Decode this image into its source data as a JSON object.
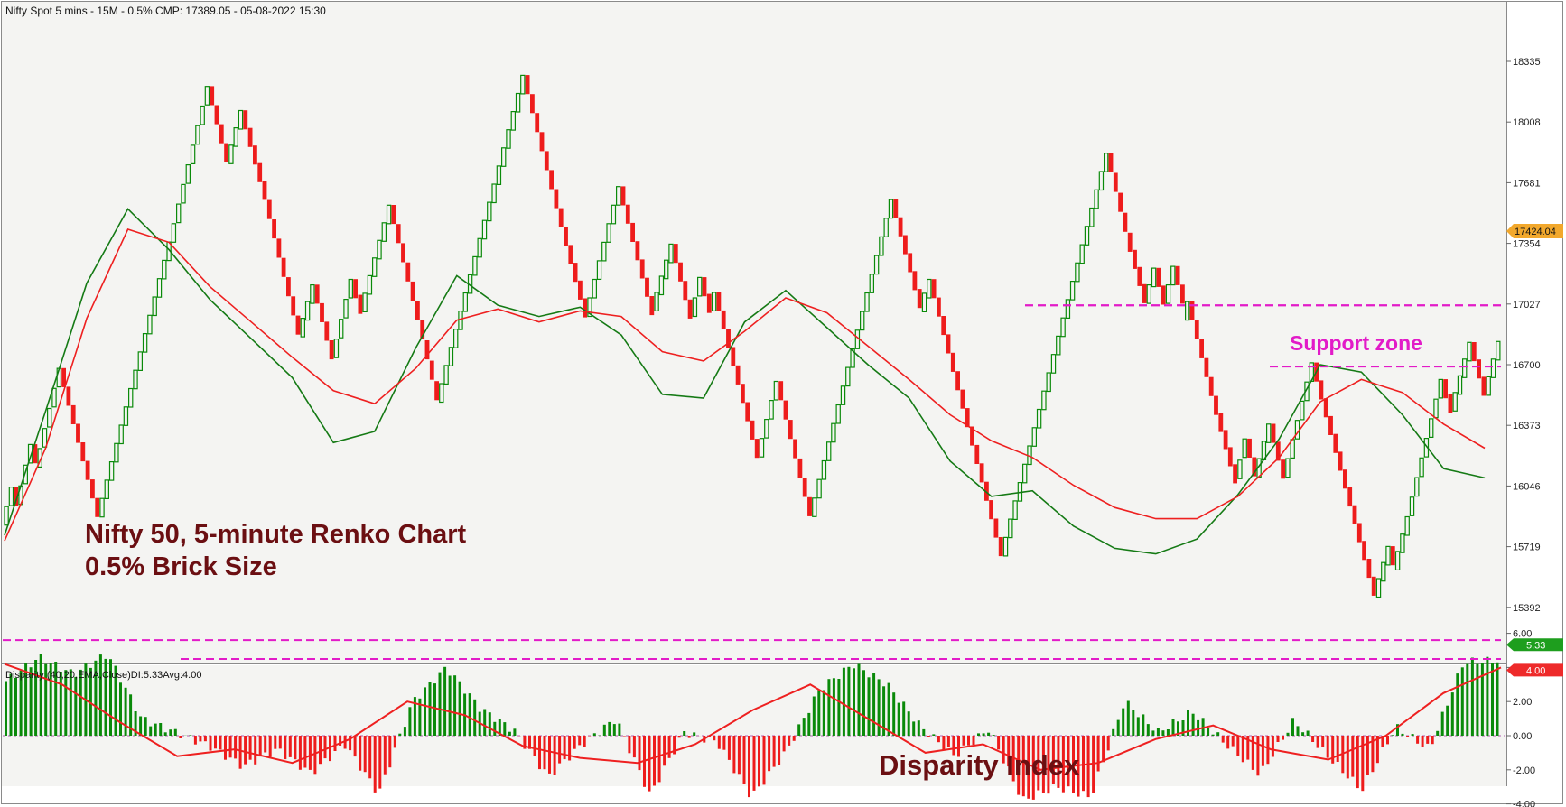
{
  "main_title": "Nifty Spot 5 mins - 15M - 0.5% CMP: 17389.05 - 05-08-2022 15:30",
  "oscillator_title": "Disparity (40,20,EMA,Close)DI:5.33Avg:4.00",
  "annotations": {
    "chart_line1": "Nifty 50, 5-minute Renko Chart",
    "chart_line2": "0.5% Brick Size",
    "support_zone": "Support zone",
    "disparity_index": "Disparity Index"
  },
  "price_badge": "17424.04",
  "di_badge": "5.33",
  "avg_badge": "4.00",
  "colors": {
    "up_brick": "#0a8a0a",
    "down_brick": "#ee1c1c",
    "ema_fast": "#157a15",
    "ema_slow": "#ee2020",
    "support": "#e21bc8",
    "annotation": "#6b0f12",
    "price_badge": "#f2a82c",
    "di_badge": "#1e9e1e",
    "avg_badge": "#ee2a2a"
  },
  "chart_data": [
    {
      "type": "renko",
      "brick_size_percent": 0.5,
      "y_ticks": [
        18335,
        18008,
        17681,
        17354,
        17027,
        16700,
        16373,
        16046,
        15719,
        15392
      ],
      "ylim": [
        15200,
        18530
      ],
      "brick_columns": 313,
      "brick_swings": [
        15800,
        15935,
        16040,
        15935,
        16270,
        16140,
        16680,
        15880,
        17460,
        18200,
        17790,
        18070,
        17690,
        17170,
        16860,
        17130,
        16730,
        17160,
        16990,
        17560,
        16940,
        16500,
        18260,
        17440,
        16960,
        17660,
        16970,
        17090,
        17350,
        16950,
        17170,
        16990,
        17090,
        16200,
        16610,
        15880,
        17590,
        17010,
        17160,
        15670,
        17840,
        17410,
        17040,
        17220,
        17030,
        17230,
        17030,
        17040,
        16530,
        16070,
        16300,
        16100,
        16380,
        16090,
        16710,
        15460,
        15720,
        15600,
        15880,
        16620,
        16460,
        16820,
        16540,
        16920,
        16870
      ],
      "series": [
        {
          "name": "",
          "kind": "ema_fast",
          "values": [
            15780,
            16450,
            17140,
            17540,
            17320,
            17050,
            16840,
            16630,
            16280,
            16340,
            16790,
            17180,
            17020,
            16960,
            17010,
            16860,
            16540,
            16520,
            16930,
            17100,
            16900,
            16700,
            16520,
            16180,
            15990,
            16020,
            15830,
            15710,
            15680,
            15760,
            16000,
            16300,
            16700,
            16660,
            16430,
            16140,
            16090
          ]
        },
        {
          "name": "",
          "kind": "ema_slow",
          "values": [
            15750,
            16250,
            16950,
            17430,
            17360,
            17120,
            16930,
            16740,
            16560,
            16490,
            16680,
            16940,
            17000,
            16930,
            16990,
            16960,
            16770,
            16720,
            16880,
            17060,
            16980,
            16800,
            16620,
            16430,
            16290,
            16200,
            16050,
            15930,
            15870,
            15870,
            15990,
            16200,
            16500,
            16620,
            16550,
            16380,
            16250
          ]
        }
      ],
      "support_zone": [
        17020,
        16690
      ]
    },
    {
      "type": "histogram",
      "name": "Disparity (40,20,EMA,Close)",
      "y_ticks": [
        6.0,
        4.0,
        2.0,
        0.0,
        -2.0,
        -4.0
      ],
      "ylim": [
        -4.5,
        7.0
      ],
      "histogram_swings": [
        3.2,
        4.6,
        3.6,
        4.8,
        1.0,
        0.2,
        -0.6,
        -1.8,
        -0.8,
        -2.2,
        -0.5,
        -3.4,
        2.0,
        4.0,
        1.6,
        0.3,
        -2.4,
        -0.5,
        1.0,
        -3.5,
        0.2,
        -0.4,
        -3.6,
        -1.0,
        2.7,
        4.2,
        3.0,
        0.5,
        -1.2,
        0.4,
        -3.8,
        -3.0,
        -3.6,
        2.0,
        0.2,
        1.4,
        -0.5,
        -2.3,
        0.9,
        -1.2,
        -3.2,
        0.5,
        -0.8,
        4.3,
        4.4
      ],
      "average_line": [
        4.2,
        3.0,
        0.8,
        -1.2,
        -0.8,
        -1.6,
        -0.2,
        2.0,
        1.2,
        -0.6,
        -1.3,
        -1.6,
        -0.5,
        1.5,
        3.0,
        1.0,
        -1.0,
        -0.5,
        -2.0,
        -1.6,
        -0.2,
        0.6,
        -0.8,
        -1.4,
        0.0,
        2.5,
        4.0
      ],
      "reference_levels": [
        5.6,
        4.5
      ]
    }
  ]
}
